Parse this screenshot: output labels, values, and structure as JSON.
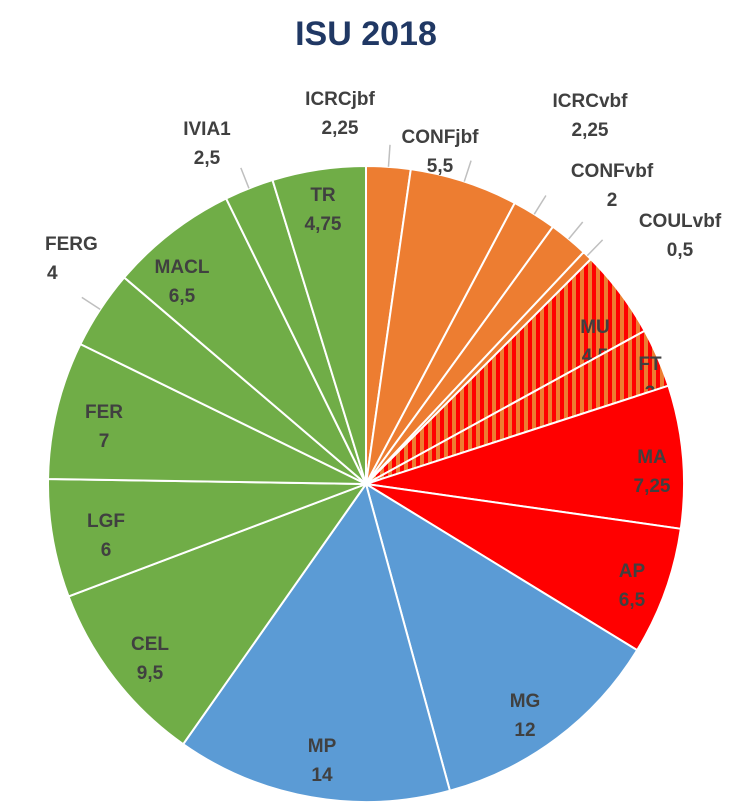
{
  "chart_data": {
    "type": "pie",
    "title": "ISU 2018",
    "categories": [
      "ICRCjbf",
      "CONFjbf",
      "ICRCvbf",
      "CONFvbf",
      "COULvbf",
      "MU",
      "FT",
      "MA",
      "AP",
      "MG",
      "MP",
      "CEL",
      "LGF",
      "FER",
      "FERG",
      "MACL",
      "IVIA1",
      "TR"
    ],
    "values": [
      2.25,
      5.5,
      2.25,
      2,
      0.5,
      4.5,
      3,
      7.25,
      6.5,
      12,
      14,
      9.5,
      6,
      7,
      4,
      6.5,
      2.5,
      4.75
    ],
    "value_labels": [
      "2,25",
      "5,5",
      "2,25",
      "2",
      "0,5",
      "4,5",
      "3",
      "7,25",
      "6,5",
      "12",
      "14",
      "9,5",
      "6",
      "7",
      "4",
      "6,5",
      "2,5",
      "4,75"
    ],
    "colors": [
      "#ED7D31",
      "#ED7D31",
      "#ED7D31",
      "#ED7D31",
      "#ED7D31",
      "#ED7D31",
      "#ED7D31",
      "#FF0000",
      "#FF0000",
      "#5B9BD5",
      "#5B9BD5",
      "#70AD47",
      "#70AD47",
      "#70AD47",
      "#70AD47",
      "#70AD47",
      "#70AD47",
      "#70AD47"
    ],
    "striped": [
      false,
      false,
      false,
      false,
      false,
      true,
      true,
      false,
      false,
      false,
      false,
      false,
      false,
      false,
      false,
      false,
      false,
      false
    ],
    "stripe_color": "#FF0000"
  }
}
